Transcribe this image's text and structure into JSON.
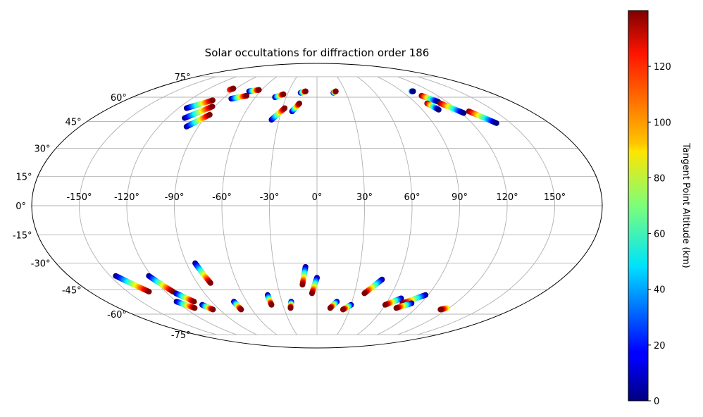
{
  "chart_data": {
    "type": "scatter",
    "projection": "mollweide",
    "title": "Solar occultations for diffraction order 186",
    "lon_ticks": [
      "-150°",
      "-120°",
      "-90°",
      "-60°",
      "-30°",
      "0°",
      "30°",
      "60°",
      "90°",
      "120°",
      "150°"
    ],
    "lat_ticks": [
      "75°",
      "60°",
      "45°",
      "30°",
      "15°",
      "0°",
      "-15°",
      "-30°",
      "-45°",
      "-60°",
      "-75°"
    ],
    "grid": true,
    "colorbar": {
      "label": "Tangent Point Altitude (km)",
      "colormap": "jet",
      "range": [
        0,
        140
      ],
      "ticks": [
        "0",
        "20",
        "40",
        "60",
        "80",
        "100",
        "120"
      ]
    },
    "tracks": [
      {
        "lon_start": -95,
        "lat_start": 65,
        "lon_end": -93,
        "lat_end": 66,
        "alt_start": 110,
        "alt_end": 140
      },
      {
        "lon_start": -113,
        "lat_start": 53,
        "lon_end": -98,
        "lat_end": 58,
        "alt_start": 0,
        "alt_end": 140
      },
      {
        "lon_start": -106,
        "lat_start": 47,
        "lon_end": -92,
        "lat_end": 54,
        "alt_start": 0,
        "alt_end": 140
      },
      {
        "lon_start": -99,
        "lat_start": 42,
        "lon_end": -88,
        "lat_end": 49,
        "alt_start": 0,
        "alt_end": 140
      },
      {
        "lon_start": -82,
        "lat_start": 59,
        "lon_end": -70,
        "lat_end": 61,
        "alt_start": 0,
        "alt_end": 140
      },
      {
        "lon_start": -72,
        "lat_start": 64,
        "lon_end": -63,
        "lat_end": 65,
        "alt_start": 0,
        "alt_end": 140
      },
      {
        "lon_start": -41,
        "lat_start": 60,
        "lon_end": -34,
        "lat_end": 62,
        "alt_start": 0,
        "alt_end": 140
      },
      {
        "lon_start": -36,
        "lat_start": 46,
        "lon_end": -28,
        "lat_end": 53,
        "alt_start": 0,
        "alt_end": 140
      },
      {
        "lon_start": -21,
        "lat_start": 51,
        "lon_end": -16,
        "lat_end": 56,
        "alt_start": 0,
        "alt_end": 140
      },
      {
        "lon_start": -17,
        "lat_start": 63,
        "lon_end": -12,
        "lat_end": 64,
        "alt_start": 0,
        "alt_end": 140
      },
      {
        "lon_start": 17,
        "lat_start": 63,
        "lon_end": 20,
        "lat_end": 64,
        "alt_start": 0,
        "alt_end": 140
      },
      {
        "lon_start": 100,
        "lat_start": 64,
        "lon_end": 102,
        "lat_end": 64,
        "alt_start": 60,
        "alt_end": 0
      },
      {
        "lon_start": 104,
        "lat_start": 61,
        "lon_end": 112,
        "lat_end": 57,
        "alt_start": 140,
        "alt_end": 0
      },
      {
        "lon_start": 100,
        "lat_start": 56,
        "lon_end": 104,
        "lat_end": 52,
        "alt_start": 140,
        "alt_end": 0
      },
      {
        "lon_start": 112,
        "lat_start": 56,
        "lon_end": 122,
        "lat_end": 50,
        "alt_start": 140,
        "alt_end": 0
      },
      {
        "lon_start": 128,
        "lat_start": 51,
        "lon_end": 139,
        "lat_end": 44,
        "alt_start": 140,
        "alt_end": 0
      },
      {
        "lon_start": -146,
        "lat_start": -37,
        "lon_end": -133,
        "lat_end": -46,
        "alt_start": 0,
        "alt_end": 140
      },
      {
        "lon_start": -122,
        "lat_start": -37,
        "lon_end": -114,
        "lat_end": -46,
        "alt_start": 0,
        "alt_end": 140
      },
      {
        "lon_start": -113,
        "lat_start": -47,
        "lon_end": -105,
        "lat_end": -52,
        "alt_start": 0,
        "alt_end": 140
      },
      {
        "lon_start": -120,
        "lat_start": -52,
        "lon_end": -111,
        "lat_end": -56,
        "alt_start": 0,
        "alt_end": 140
      },
      {
        "lon_start": -101,
        "lat_start": -54,
        "lon_end": -96,
        "lat_end": -57,
        "alt_start": 0,
        "alt_end": 140
      },
      {
        "lon_start": -84,
        "lat_start": -30,
        "lon_end": -80,
        "lat_end": -41,
        "alt_start": 0,
        "alt_end": 140
      },
      {
        "lon_start": -71,
        "lat_start": -52,
        "lon_end": -70,
        "lat_end": -57,
        "alt_start": 0,
        "alt_end": 140
      },
      {
        "lon_start": -40,
        "lat_start": -48,
        "lon_end": -40,
        "lat_end": -54,
        "alt_start": 0,
        "alt_end": 140
      },
      {
        "lon_start": -22,
        "lat_start": -52,
        "lon_end": -24,
        "lat_end": -56,
        "alt_start": 0,
        "alt_end": 140
      },
      {
        "lon_start": -8,
        "lat_start": -32,
        "lon_end": -11,
        "lat_end": -42,
        "alt_start": 0,
        "alt_end": 140
      },
      {
        "lon_start": 0,
        "lat_start": -38,
        "lon_end": -4,
        "lat_end": -47,
        "alt_start": 0,
        "alt_end": 140
      },
      {
        "lon_start": 17,
        "lat_start": -52,
        "lon_end": 12,
        "lat_end": -56,
        "alt_start": 0,
        "alt_end": 140
      },
      {
        "lon_start": 30,
        "lat_start": -54,
        "lon_end": 24,
        "lat_end": -57,
        "alt_start": 0,
        "alt_end": 140
      },
      {
        "lon_start": 48,
        "lat_start": -39,
        "lon_end": 38,
        "lat_end": -47,
        "alt_start": 0,
        "alt_end": 140
      },
      {
        "lon_start": 70,
        "lat_start": -50,
        "lon_end": 60,
        "lat_end": -54,
        "alt_start": 0,
        "alt_end": 140
      },
      {
        "lon_start": 88,
        "lat_start": -48,
        "lon_end": 74,
        "lat_end": -53,
        "alt_start": 0,
        "alt_end": 140
      },
      {
        "lon_start": 82,
        "lat_start": -53,
        "lon_end": 72,
        "lat_end": -56,
        "alt_start": 0,
        "alt_end": 140
      },
      {
        "lon_start": 118,
        "lat_start": -56,
        "lon_end": 114,
        "lat_end": -57,
        "alt_start": 80,
        "alt_end": 140
      }
    ]
  }
}
